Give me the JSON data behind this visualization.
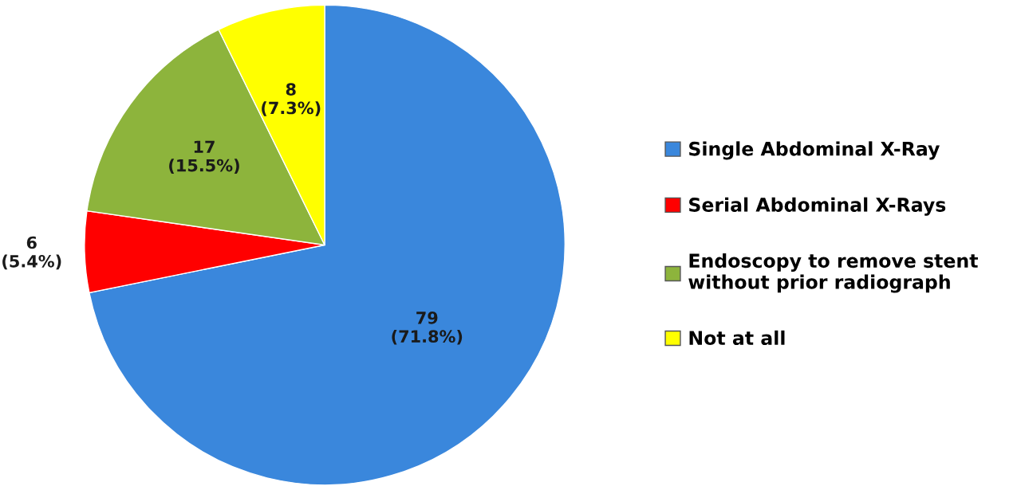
{
  "chart_data": {
    "type": "pie",
    "categories": [
      "Single Abdominal X-Ray",
      "Serial Abdominal X-Rays",
      "Endoscopy to remove stent\nwithout prior radiograph",
      "Not at all"
    ],
    "values": [
      79,
      6,
      17,
      8
    ],
    "colors": [
      "#3a87dc",
      "#ff0000",
      "#8db43c",
      "#ffff00"
    ],
    "value_labels": [
      "79\n(71.8%)",
      "6\n(5.4%)",
      "17\n(15.5%)",
      "8\n(7.3%)"
    ],
    "legend": "right"
  }
}
